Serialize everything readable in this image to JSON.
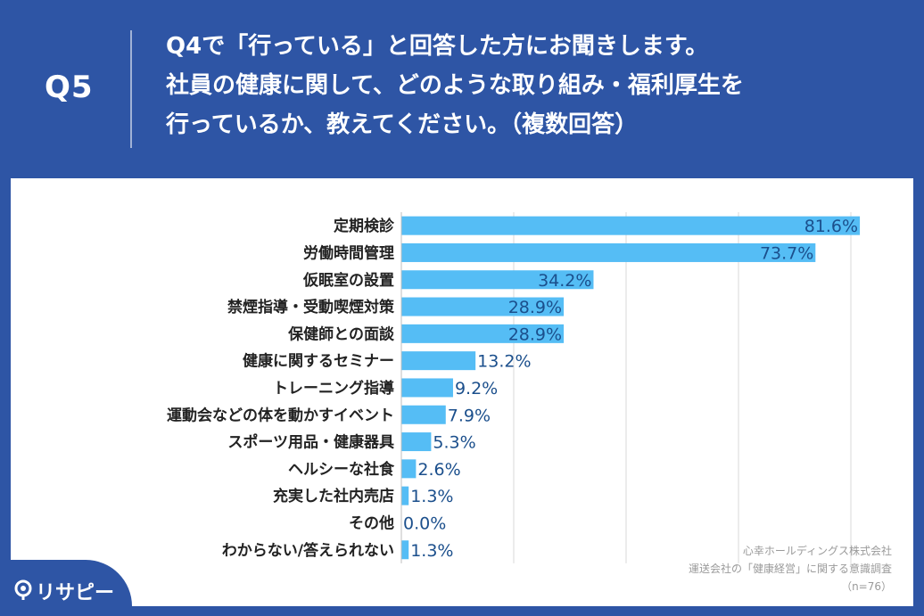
{
  "header": {
    "q_number": "Q5",
    "question_lines": [
      "Q4で「行っている」と回答した方にお聞きします。",
      "社員の健康に関して、どのような取り組み・福利厚生を",
      "行っているか、教えてください。（複数回答）"
    ]
  },
  "source": {
    "company": "心幸ホールディングス株式会社",
    "survey": "運送会社の「健康経営」に関する意識調査",
    "sample": "（n=76）"
  },
  "logo": {
    "text": "リサピー",
    "icon": "pin-icon"
  },
  "colors": {
    "header_bg": "#2e55a5",
    "bar": "#55bdf5",
    "value_text": "#1b4f8c"
  },
  "chart_data": {
    "type": "bar",
    "orientation": "horizontal",
    "categories": [
      "定期検診",
      "労働時間管理",
      "仮眠室の設置",
      "禁煙指導・受動喫煙対策",
      "保健師との面談",
      "健康に関するセミナー",
      "トレーニング指導",
      "運動会などの体を動かすイベント",
      "スポーツ用品・健康器具",
      "ヘルシーな社食",
      "充実した社内売店",
      "その他",
      "わからない/答えられない"
    ],
    "values": [
      81.6,
      73.7,
      34.2,
      28.9,
      28.9,
      13.2,
      9.2,
      7.9,
      5.3,
      2.6,
      1.3,
      0.0,
      1.3
    ],
    "value_labels": [
      "81.6%",
      "73.7%",
      "34.2%",
      "28.9%",
      "28.9%",
      "13.2%",
      "9.2%",
      "7.9%",
      "5.3%",
      "2.6%",
      "1.3%",
      "0.0%",
      "1.3%"
    ],
    "xlim": [
      0,
      100
    ],
    "grid": true,
    "legend": "none"
  }
}
